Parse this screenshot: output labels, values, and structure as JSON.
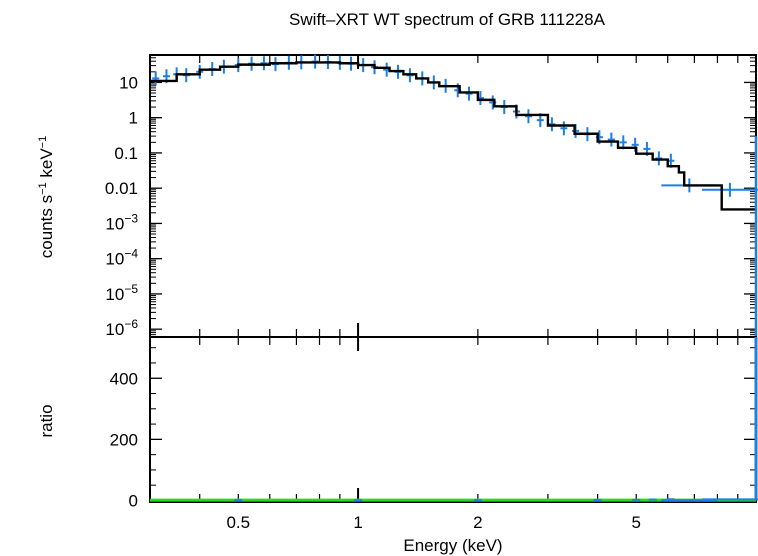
{
  "chart_data": [
    {
      "type": "scatter",
      "title": "Swift–XRT WT spectrum of GRB 111228A",
      "ylabel_parts": [
        "counts s",
        "−1",
        " keV",
        "−1"
      ],
      "xscale": "log",
      "yscale": "log",
      "xlim": [
        0.3,
        10
      ],
      "ylim": [
        6e-07,
        60
      ],
      "y_ticks": [
        {
          "value": 10,
          "label": "10"
        },
        {
          "value": 1,
          "label": "1"
        },
        {
          "value": 0.1,
          "label": "0.1"
        },
        {
          "value": 0.01,
          "label": "0.01"
        },
        {
          "value": 0.001,
          "base": "10",
          "exp": "−3"
        },
        {
          "value": 0.0001,
          "base": "10",
          "exp": "−4"
        },
        {
          "value": 1e-05,
          "base": "10",
          "exp": "−5"
        },
        {
          "value": 1e-06,
          "base": "10",
          "exp": "−6"
        }
      ],
      "series": [
        {
          "kind": "data",
          "color": "#1f7fe0",
          "points": [
            [
              0.31,
              13
            ],
            [
              0.33,
              15
            ],
            [
              0.35,
              17
            ],
            [
              0.37,
              16
            ],
            [
              0.4,
              20
            ],
            [
              0.43,
              24
            ],
            [
              0.46,
              28
            ],
            [
              0.5,
              31
            ],
            [
              0.54,
              34
            ],
            [
              0.58,
              35
            ],
            [
              0.62,
              33
            ],
            [
              0.67,
              36
            ],
            [
              0.72,
              37
            ],
            [
              0.78,
              39
            ],
            [
              0.84,
              38
            ],
            [
              0.9,
              36
            ],
            [
              0.96,
              34
            ],
            [
              1.03,
              31
            ],
            [
              1.1,
              27
            ],
            [
              1.18,
              23
            ],
            [
              1.26,
              20
            ],
            [
              1.35,
              16
            ],
            [
              1.45,
              13
            ],
            [
              1.55,
              10
            ],
            [
              1.66,
              8
            ],
            [
              1.78,
              6
            ],
            [
              1.9,
              4.8
            ],
            [
              2.03,
              3.6
            ],
            [
              2.18,
              2.7
            ],
            [
              2.33,
              2.0
            ],
            [
              2.5,
              1.5
            ],
            [
              2.68,
              1.1
            ],
            [
              2.87,
              0.85
            ],
            [
              3.07,
              0.65
            ],
            [
              3.29,
              0.5
            ],
            [
              3.52,
              0.42
            ],
            [
              3.77,
              0.34
            ],
            [
              4.04,
              0.28
            ],
            [
              4.33,
              0.24
            ],
            [
              4.64,
              0.2
            ],
            [
              4.97,
              0.17
            ],
            [
              5.32,
              0.13
            ],
            [
              5.7,
              0.07
            ],
            [
              6.11,
              0.06
            ],
            [
              6.8,
              0.012
            ],
            [
              8.6,
              0.009
            ]
          ]
        },
        {
          "kind": "model",
          "color": "#000000",
          "steps": [
            [
              0.3,
              11
            ],
            [
              0.35,
              17
            ],
            [
              0.4,
              23
            ],
            [
              0.45,
              28
            ],
            [
              0.5,
              32
            ],
            [
              0.6,
              35
            ],
            [
              0.7,
              37
            ],
            [
              0.8,
              37
            ],
            [
              0.9,
              35
            ],
            [
              1.0,
              31
            ],
            [
              1.1,
              26
            ],
            [
              1.2,
              21
            ],
            [
              1.3,
              17
            ],
            [
              1.4,
              13
            ],
            [
              1.5,
              10
            ],
            [
              1.6,
              7.8
            ],
            [
              1.8,
              5.2
            ],
            [
              2.0,
              3.2
            ],
            [
              2.2,
              2.1
            ],
            [
              2.5,
              1.2
            ],
            [
              3.0,
              0.6
            ],
            [
              3.5,
              0.35
            ],
            [
              4.0,
              0.21
            ],
            [
              4.5,
              0.14
            ],
            [
              5.0,
              0.095
            ],
            [
              5.5,
              0.065
            ],
            [
              6.0,
              0.042
            ],
            [
              6.4,
              0.028
            ],
            [
              6.6,
              0.012
            ],
            [
              7.1,
              0.012
            ],
            [
              8.2,
              0.0025
            ],
            [
              10.0,
              0.0025
            ]
          ]
        }
      ]
    },
    {
      "type": "scatter",
      "xlabel": "Energy (keV)",
      "ylabel": "ratio",
      "xscale": "log",
      "xlim": [
        0.3,
        10
      ],
      "ylim": [
        -5,
        535
      ],
      "x_ticks": [
        {
          "value": 0.5,
          "label": "0.5"
        },
        {
          "value": 1,
          "label": "1"
        },
        {
          "value": 2,
          "label": "2"
        },
        {
          "value": 5,
          "label": "5"
        }
      ],
      "y_ticks": [
        {
          "value": 0,
          "label": "0"
        },
        {
          "value": 200,
          "label": "200"
        },
        {
          "value": 400,
          "label": "400"
        }
      ],
      "reference_line": {
        "value": 1,
        "color": "#22dd22"
      },
      "series": [
        {
          "kind": "ratio",
          "color": "#1f7fe0",
          "points": [
            [
              0.5,
              1.0
            ],
            [
              1.0,
              1.0
            ],
            [
              2.0,
              1.1
            ],
            [
              4.0,
              1.5
            ],
            [
              5.0,
              2
            ],
            [
              5.5,
              3
            ],
            [
              6.1,
              4
            ],
            [
              6.8,
              1.0
            ],
            [
              8.6,
              3.6
            ]
          ]
        }
      ],
      "outlier_at_xmax": {
        "from": 0,
        "to": 535,
        "color": "#1f7fe0"
      }
    }
  ]
}
